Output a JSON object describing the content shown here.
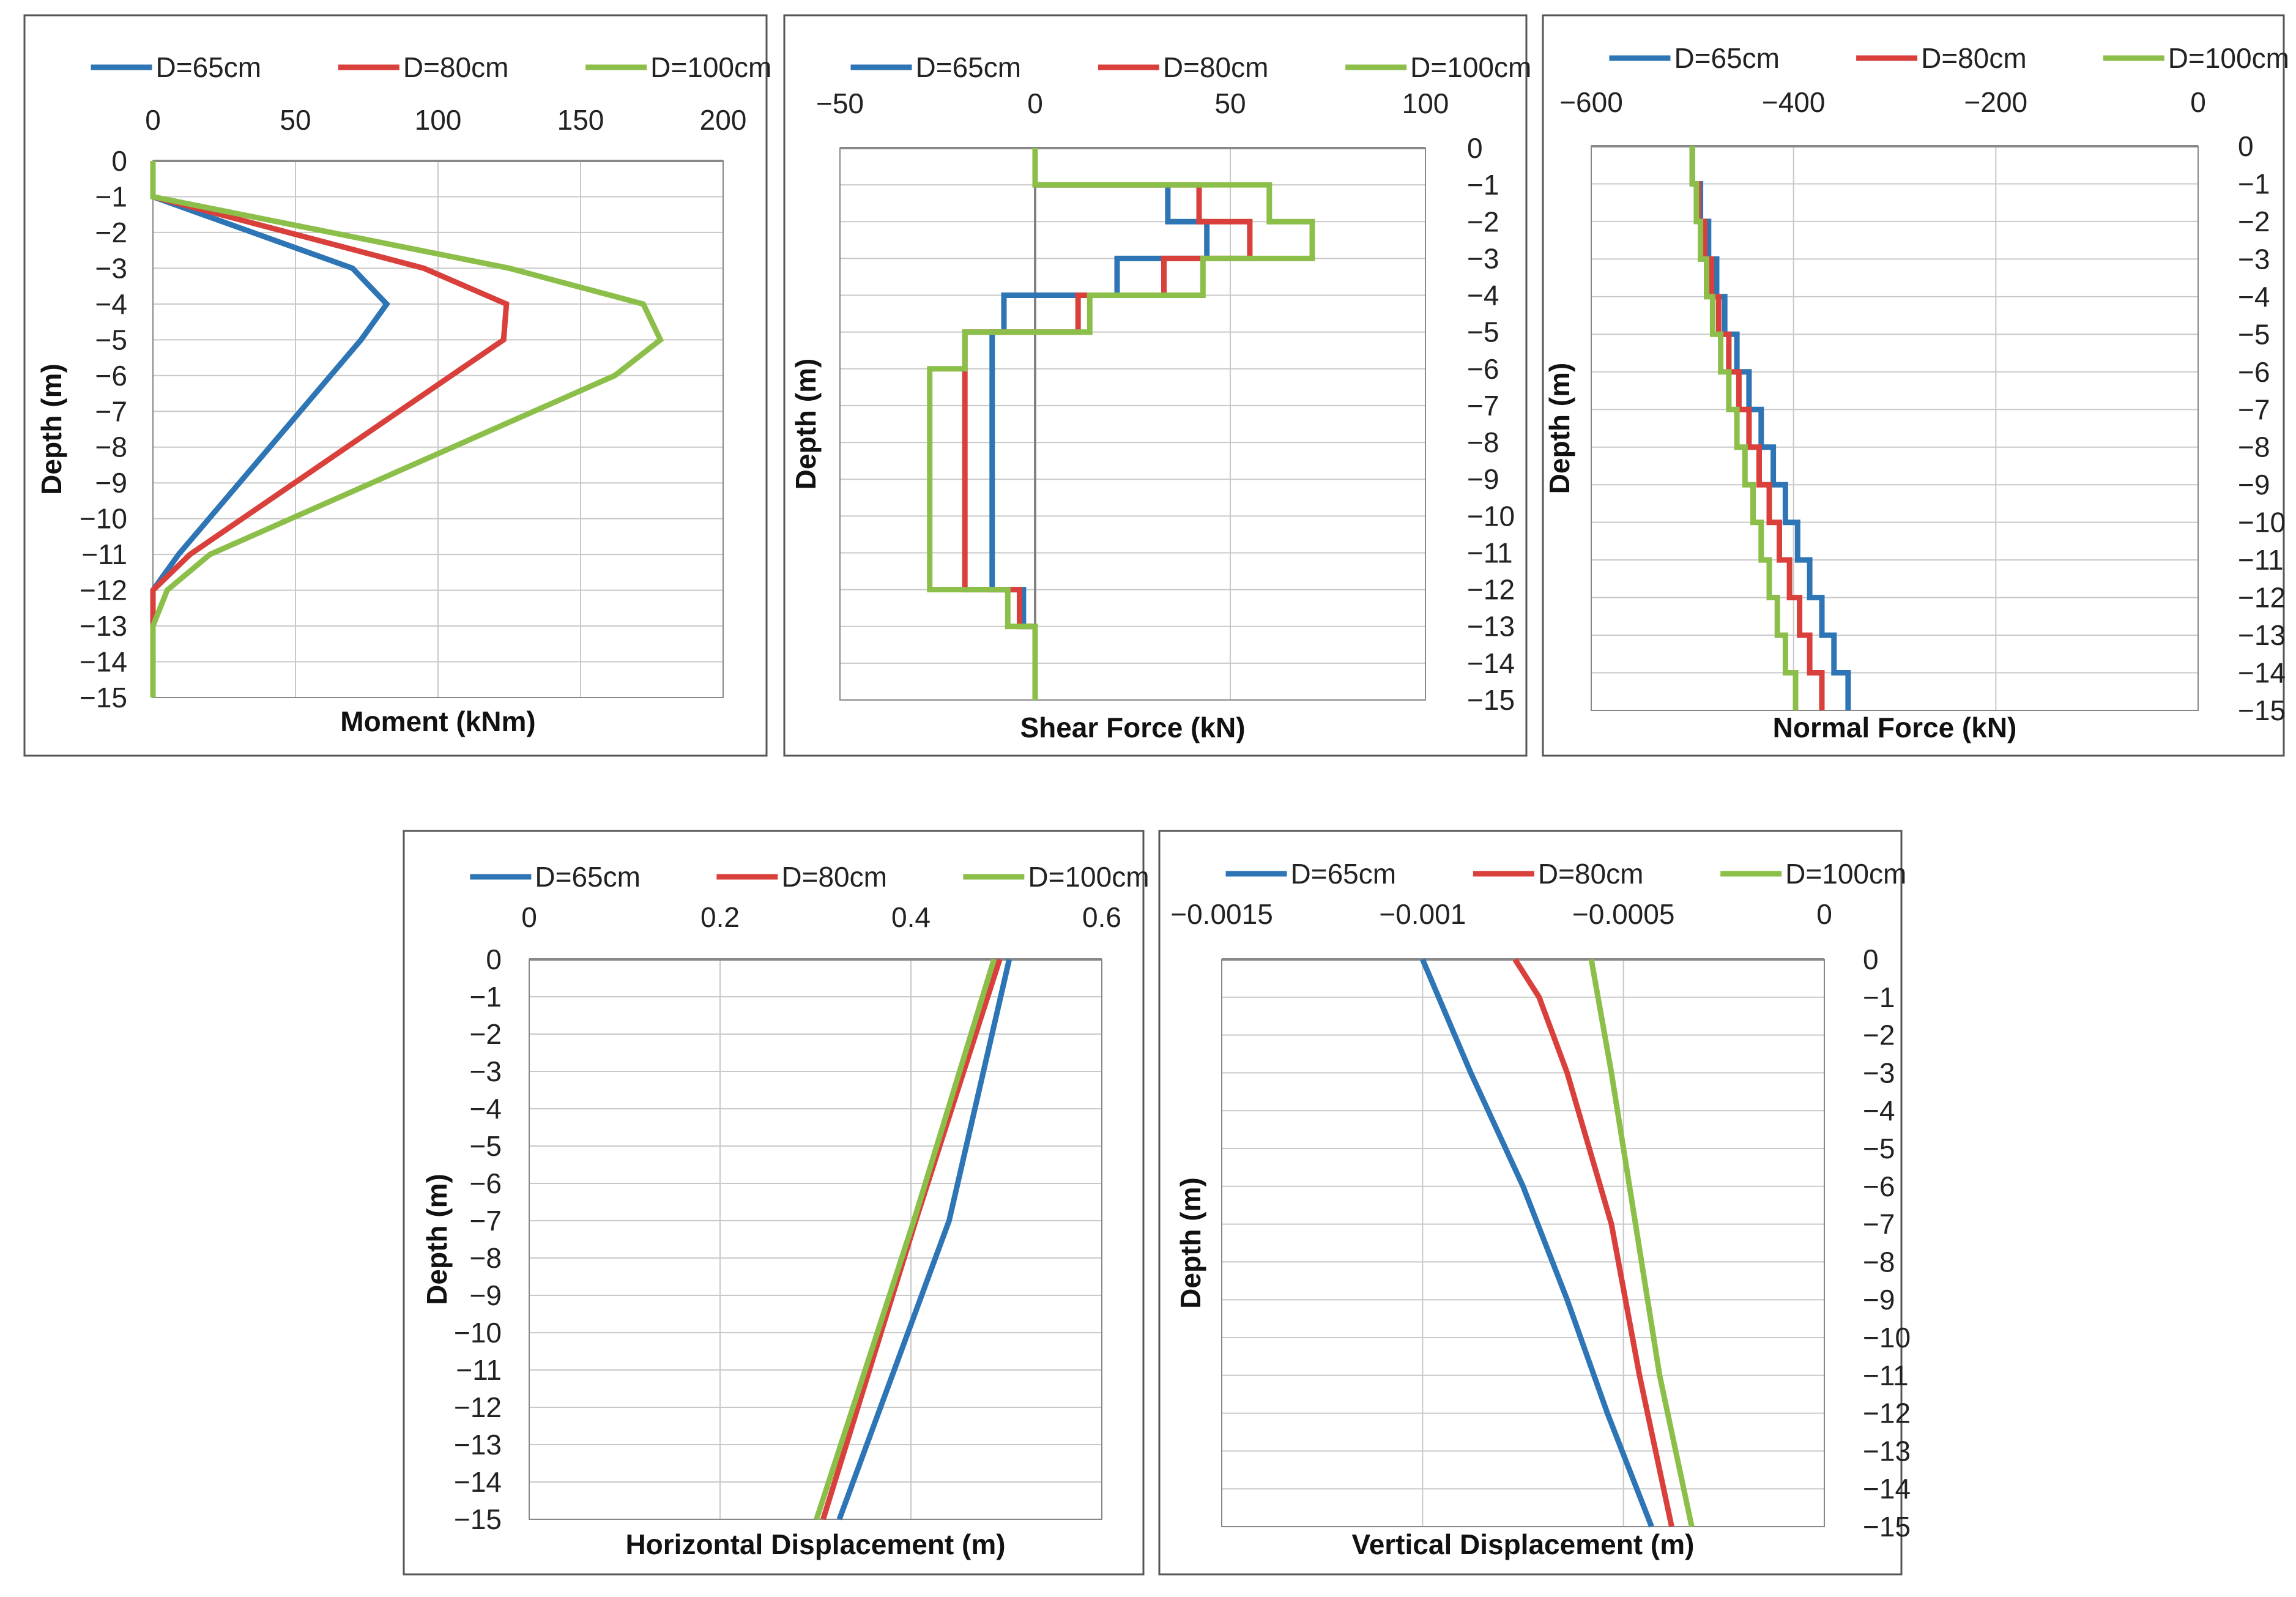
{
  "colors": {
    "d65": "#2e75b6",
    "d80": "#d9403b",
    "d100": "#8cbf4a",
    "grid": "#c8c8c8",
    "frame": "#555555",
    "zero_line": "#808080"
  },
  "legend": [
    "D=65cm",
    "D=80cm",
    "D=100cm"
  ],
  "chart_data": [
    {
      "id": "moment",
      "type": "line",
      "xlabel": "Moment (kNm)",
      "ylabel": "Depth (m)",
      "xlim": [
        0,
        200
      ],
      "ylim": [
        -15,
        0
      ],
      "x_ticks": [
        "0",
        "50",
        "100",
        "150",
        "200"
      ],
      "y_ticks": [
        "0",
        "-1",
        "-2",
        "-3",
        "-4",
        "-5",
        "-6",
        "-7",
        "-8",
        "-9",
        "-10",
        "-11",
        "-12",
        "-13",
        "-14",
        "-15"
      ],
      "y_tick_side": "left",
      "series": [
        {
          "name": "D=65cm",
          "color": "#2e75b6",
          "points": [
            [
              0,
              0
            ],
            [
              0,
              -1
            ],
            [
              70,
              -3
            ],
            [
              82,
              -4
            ],
            [
              73,
              -5
            ],
            [
              9,
              -11
            ],
            [
              0,
              -12
            ],
            [
              0,
              -15
            ]
          ]
        },
        {
          "name": "D=80cm",
          "color": "#d9403b",
          "points": [
            [
              0,
              0
            ],
            [
              0,
              -1
            ],
            [
              95,
              -3
            ],
            [
              124,
              -4
            ],
            [
              123,
              -5
            ],
            [
              13,
              -11
            ],
            [
              0,
              -12
            ],
            [
              0,
              -15
            ]
          ]
        },
        {
          "name": "D=100cm",
          "color": "#8cbf4a",
          "points": [
            [
              0,
              0
            ],
            [
              0,
              -1
            ],
            [
              125,
              -3
            ],
            [
              172,
              -4
            ],
            [
              178,
              -5
            ],
            [
              162,
              -6
            ],
            [
              20,
              -11
            ],
            [
              5,
              -12
            ],
            [
              0,
              -13
            ],
            [
              0,
              -15
            ]
          ]
        }
      ]
    },
    {
      "id": "shear",
      "type": "line",
      "xlabel": "Shear Force (kN)",
      "ylabel": "Depth (m)",
      "xlim": [
        -50,
        100
      ],
      "ylim": [
        -15,
        0
      ],
      "x_ticks": [
        "-50",
        "0",
        "50",
        "100"
      ],
      "y_ticks": [
        "0",
        "-1",
        "-2",
        "-3",
        "-4",
        "-5",
        "-6",
        "-7",
        "-8",
        "-9",
        "-10",
        "-11",
        "-12",
        "-13",
        "-14",
        "-15"
      ],
      "y_tick_side": "right",
      "series": [
        {
          "name": "D=65cm",
          "color": "#2e75b6",
          "points": [
            [
              0,
              -1
            ],
            [
              34,
              -1
            ],
            [
              34,
              -2
            ],
            [
              44,
              -2
            ],
            [
              44,
              -3
            ],
            [
              21,
              -3
            ],
            [
              21,
              -4
            ],
            [
              -8,
              -4
            ],
            [
              -8,
              -5
            ],
            [
              -11,
              -5
            ],
            [
              -11,
              -12
            ],
            [
              -3,
              -12
            ],
            [
              -3,
              -13
            ],
            [
              0,
              -13
            ]
          ]
        },
        {
          "name": "D=80cm",
          "color": "#d9403b",
          "points": [
            [
              0,
              -1
            ],
            [
              42,
              -1
            ],
            [
              42,
              -2
            ],
            [
              55,
              -2
            ],
            [
              55,
              -3
            ],
            [
              33,
              -3
            ],
            [
              33,
              -4
            ],
            [
              11,
              -4
            ],
            [
              11,
              -5
            ],
            [
              -18,
              -5
            ],
            [
              -18,
              -12
            ],
            [
              -4,
              -12
            ],
            [
              -4,
              -13
            ],
            [
              0,
              -13
            ]
          ]
        },
        {
          "name": "D=100cm",
          "color": "#8cbf4a",
          "points": [
            [
              0,
              0
            ],
            [
              0,
              -1
            ],
            [
              60,
              -1
            ],
            [
              60,
              -2
            ],
            [
              71,
              -2
            ],
            [
              71,
              -3
            ],
            [
              43,
              -3
            ],
            [
              43,
              -4
            ],
            [
              14,
              -4
            ],
            [
              14,
              -5
            ],
            [
              -18,
              -5
            ],
            [
              -18,
              -6
            ],
            [
              -27,
              -6
            ],
            [
              -27,
              -12
            ],
            [
              -7,
              -12
            ],
            [
              -7,
              -13
            ],
            [
              0,
              -13
            ],
            [
              0,
              -15
            ]
          ]
        }
      ]
    },
    {
      "id": "normal",
      "type": "line",
      "xlabel": "Normal Force (kN)",
      "ylabel": "Depth (m)",
      "xlim": [
        -600,
        0
      ],
      "ylim": [
        -15,
        0
      ],
      "x_ticks": [
        "-600",
        "-400",
        "-200",
        "0"
      ],
      "y_ticks": [
        "0",
        "-1",
        "-2",
        "-3",
        "-4",
        "-5",
        "-6",
        "-7",
        "-8",
        "-9",
        "-10",
        "-11",
        "-12",
        "-13",
        "-14",
        "-15"
      ],
      "y_tick_side": "right",
      "series": [
        {
          "name": "D=65cm",
          "color": "#2e75b6",
          "points": [
            [
              -500,
              0
            ],
            [
              -500,
              -1
            ],
            [
              -492,
              -1
            ],
            [
              -492,
              -2
            ],
            [
              -484,
              -2
            ],
            [
              -484,
              -3
            ],
            [
              -476,
              -3
            ],
            [
              -476,
              -4
            ],
            [
              -468,
              -4
            ],
            [
              -468,
              -5
            ],
            [
              -456,
              -5
            ],
            [
              -456,
              -6
            ],
            [
              -444,
              -6
            ],
            [
              -444,
              -7
            ],
            [
              -432,
              -7
            ],
            [
              -432,
              -8
            ],
            [
              -420,
              -8
            ],
            [
              -420,
              -9
            ],
            [
              -408,
              -9
            ],
            [
              -408,
              -10
            ],
            [
              -396,
              -10
            ],
            [
              -396,
              -11
            ],
            [
              -384,
              -11
            ],
            [
              -384,
              -12
            ],
            [
              -372,
              -12
            ],
            [
              -372,
              -13
            ],
            [
              -360,
              -13
            ],
            [
              -360,
              -14
            ],
            [
              -346,
              -14
            ],
            [
              -346,
              -15
            ]
          ]
        },
        {
          "name": "D=80cm",
          "color": "#d9403b",
          "points": [
            [
              -500,
              0
            ],
            [
              -500,
              -1
            ],
            [
              -494,
              -1
            ],
            [
              -494,
              -2
            ],
            [
              -488,
              -2
            ],
            [
              -488,
              -3
            ],
            [
              -481,
              -3
            ],
            [
              -481,
              -4
            ],
            [
              -474,
              -4
            ],
            [
              -474,
              -5
            ],
            [
              -464,
              -5
            ],
            [
              -464,
              -6
            ],
            [
              -454,
              -6
            ],
            [
              -454,
              -7
            ],
            [
              -444,
              -7
            ],
            [
              -444,
              -8
            ],
            [
              -434,
              -8
            ],
            [
              -434,
              -9
            ],
            [
              -424,
              -9
            ],
            [
              -424,
              -10
            ],
            [
              -414,
              -10
            ],
            [
              -414,
              -11
            ],
            [
              -404,
              -11
            ],
            [
              -404,
              -12
            ],
            [
              -394,
              -12
            ],
            [
              -394,
              -13
            ],
            [
              -384,
              -13
            ],
            [
              -384,
              -14
            ],
            [
              -372,
              -14
            ],
            [
              -372,
              -15
            ]
          ]
        },
        {
          "name": "D=100cm",
          "color": "#8cbf4a",
          "points": [
            [
              -500,
              0
            ],
            [
              -500,
              -1
            ],
            [
              -496,
              -1
            ],
            [
              -496,
              -2
            ],
            [
              -492,
              -2
            ],
            [
              -492,
              -3
            ],
            [
              -486,
              -3
            ],
            [
              -486,
              -4
            ],
            [
              -480,
              -4
            ],
            [
              -480,
              -5
            ],
            [
              -472,
              -5
            ],
            [
              -472,
              -6
            ],
            [
              -464,
              -6
            ],
            [
              -464,
              -7
            ],
            [
              -456,
              -7
            ],
            [
              -456,
              -8
            ],
            [
              -448,
              -8
            ],
            [
              -448,
              -9
            ],
            [
              -440,
              -9
            ],
            [
              -440,
              -10
            ],
            [
              -432,
              -10
            ],
            [
              -432,
              -11
            ],
            [
              -424,
              -11
            ],
            [
              -424,
              -12
            ],
            [
              -416,
              -12
            ],
            [
              -416,
              -13
            ],
            [
              -408,
              -13
            ],
            [
              -408,
              -14
            ],
            [
              -398,
              -14
            ],
            [
              -398,
              -15
            ]
          ]
        }
      ]
    },
    {
      "id": "hdisp",
      "type": "line",
      "xlabel": "Horizontal Displacement (m)",
      "ylabel": "Depth (m)",
      "xlim": [
        0,
        0.6
      ],
      "ylim": [
        -15,
        0
      ],
      "x_ticks": [
        "0",
        "0.2",
        "0.4",
        "0.6"
      ],
      "y_ticks": [
        "0",
        "-1",
        "-2",
        "-3",
        "-4",
        "-5",
        "-6",
        "-7",
        "-8",
        "-9",
        "-10",
        "-11",
        "-12",
        "-13",
        "-14",
        "-15"
      ],
      "y_tick_side": "left",
      "series": [
        {
          "name": "D=65cm",
          "color": "#2e75b6",
          "points": [
            [
              0.503,
              0
            ],
            [
              0.44,
              -7
            ],
            [
              0.325,
              -15
            ]
          ]
        },
        {
          "name": "D=80cm",
          "color": "#d9403b",
          "points": [
            [
              0.493,
              0
            ],
            [
              0.405,
              -7
            ],
            [
              0.308,
              -15
            ]
          ]
        },
        {
          "name": "D=100cm",
          "color": "#8cbf4a",
          "points": [
            [
              0.487,
              0
            ],
            [
              0.403,
              -7
            ],
            [
              0.301,
              -15
            ]
          ]
        }
      ]
    },
    {
      "id": "vdisp",
      "type": "line",
      "xlabel": "Vertical Displacement (m)",
      "ylabel": "Depth (m)",
      "xlim": [
        -0.0015,
        0
      ],
      "ylim": [
        -15,
        0
      ],
      "x_ticks": [
        "-0.0015",
        "-0.001",
        "-0.0005",
        "0"
      ],
      "y_ticks": [
        "0",
        "-1",
        "-2",
        "-3",
        "-4",
        "-5",
        "-6",
        "-7",
        "-8",
        "-9",
        "-10",
        "-11",
        "-12",
        "-13",
        "-14",
        "-15"
      ],
      "y_tick_side": "right",
      "series": [
        {
          "name": "D=65cm",
          "color": "#2e75b6",
          "points": [
            [
              -0.001,
              0
            ],
            [
              -0.00088,
              -3
            ],
            [
              -0.00075,
              -6
            ],
            [
              -0.00064,
              -9
            ],
            [
              -0.00054,
              -12
            ],
            [
              -0.00043,
              -15
            ]
          ]
        },
        {
          "name": "D=80cm",
          "color": "#d9403b",
          "points": [
            [
              -0.00077,
              0
            ],
            [
              -0.00071,
              -1
            ],
            [
              -0.00064,
              -3
            ],
            [
              -0.00053,
              -7
            ],
            [
              -0.00046,
              -11
            ],
            [
              -0.00038,
              -15
            ]
          ]
        },
        {
          "name": "D=100cm",
          "color": "#8cbf4a",
          "points": [
            [
              -0.00058,
              0
            ],
            [
              -0.00053,
              -3
            ],
            [
              -0.00047,
              -7
            ],
            [
              -0.00041,
              -11
            ],
            [
              -0.00033,
              -15
            ]
          ]
        }
      ]
    }
  ]
}
